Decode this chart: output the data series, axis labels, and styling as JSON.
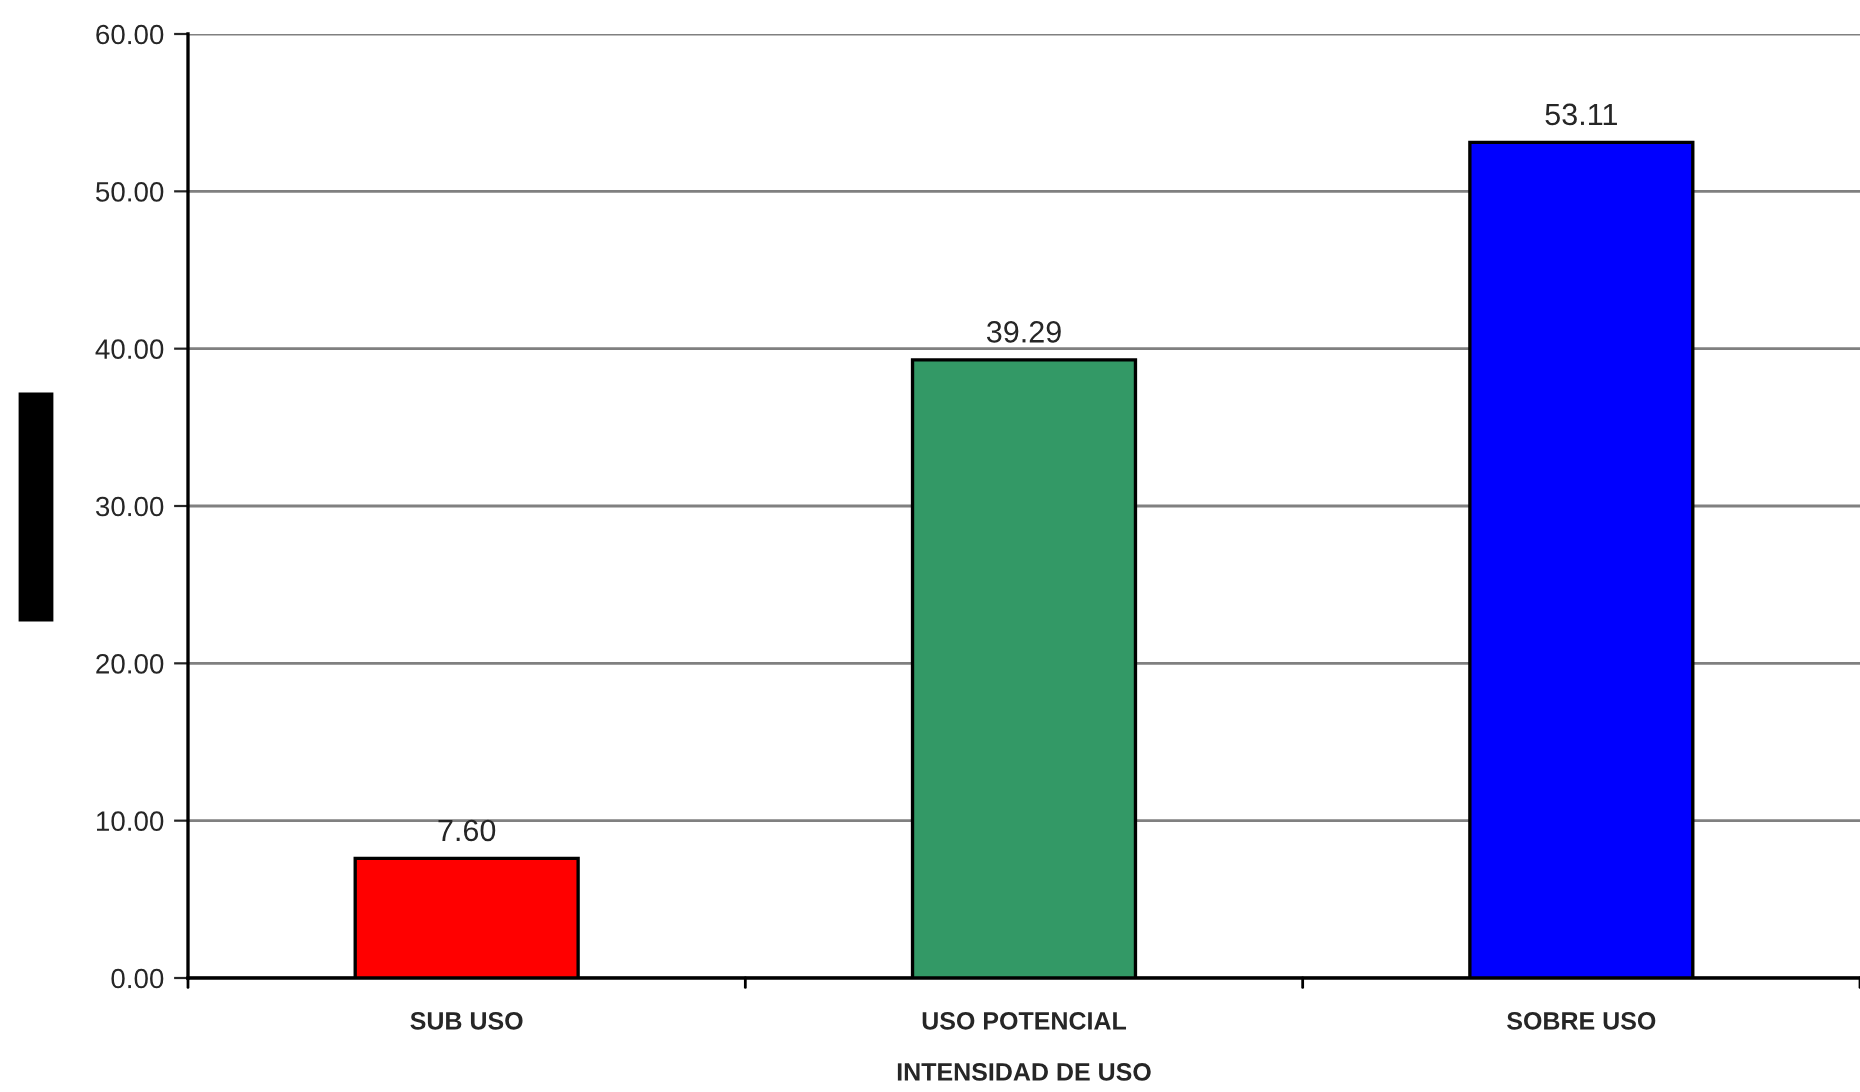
{
  "chart_data": {
    "type": "bar",
    "xlabel": "INTENSIDAD DE USO",
    "categories": [
      "SUB USO",
      "USO POTENCIAL",
      "SOBRE USO"
    ],
    "values": [
      7.6,
      39.29,
      53.11
    ],
    "colors": [
      "#ff0000",
      "#339966",
      "#0000ff"
    ],
    "ylim": [
      0,
      60
    ],
    "yticks": [
      {
        "value": 0,
        "label": "0.00"
      },
      {
        "value": 10,
        "label": "10.00"
      },
      {
        "value": 20,
        "label": "20.00"
      },
      {
        "value": 30,
        "label": "30.00"
      },
      {
        "value": 40,
        "label": "40.00"
      },
      {
        "value": 50,
        "label": "50.00"
      },
      {
        "value": 60,
        "label": "60.00"
      }
    ],
    "value_labels": [
      "7.60",
      "39.29",
      "53.11"
    ],
    "grid": "y"
  }
}
